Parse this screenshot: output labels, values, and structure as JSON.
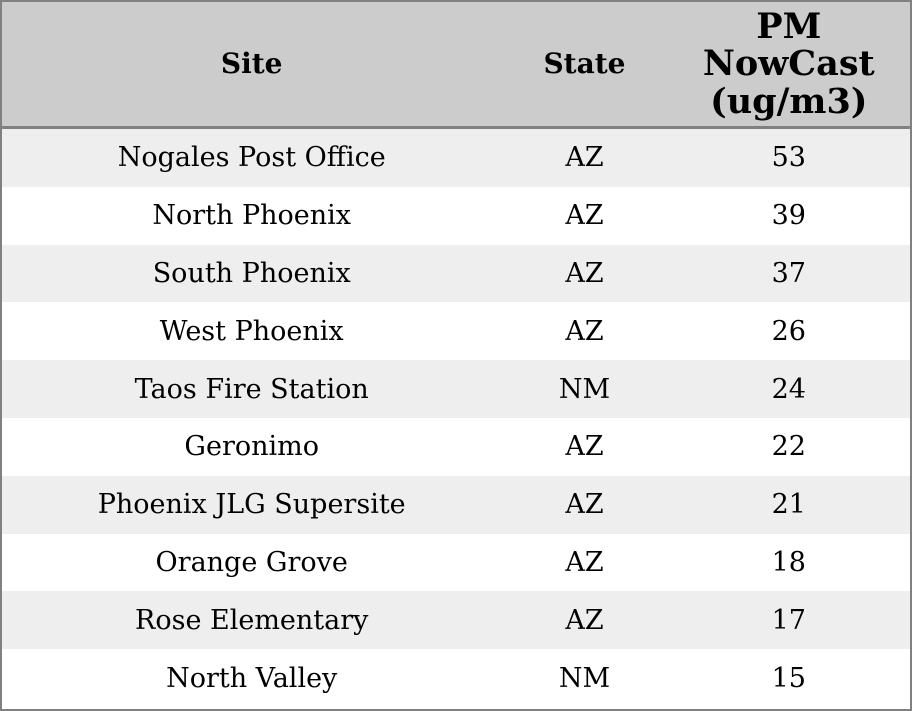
{
  "colors": {
    "header_bg": "#cccccc",
    "row_odd_bg": "#eeeeee",
    "row_even_bg": "#ffffff",
    "border": "#808080",
    "text": "#000000"
  },
  "table": {
    "headers": {
      "site": "Site",
      "state": "State",
      "pm": "PM\nNowCast\n(ug/m3)"
    }
  },
  "chart_data": {
    "type": "table",
    "title": "",
    "columns": [
      "Site",
      "State",
      "PM NowCast (ug/m3)"
    ],
    "rows": [
      {
        "site": "Nogales Post Office",
        "state": "AZ",
        "pm": 53
      },
      {
        "site": "North Phoenix",
        "state": "AZ",
        "pm": 39
      },
      {
        "site": "South Phoenix",
        "state": "AZ",
        "pm": 37
      },
      {
        "site": "West Phoenix",
        "state": "AZ",
        "pm": 26
      },
      {
        "site": "Taos Fire Station",
        "state": "NM",
        "pm": 24
      },
      {
        "site": "Geronimo",
        "state": "AZ",
        "pm": 22
      },
      {
        "site": "Phoenix JLG Supersite",
        "state": "AZ",
        "pm": 21
      },
      {
        "site": "Orange Grove",
        "state": "AZ",
        "pm": 18
      },
      {
        "site": "Rose Elementary",
        "state": "AZ",
        "pm": 17
      },
      {
        "site": "North Valley",
        "state": "NM",
        "pm": 15
      }
    ],
    "layout": {
      "striped_rows": true,
      "grid": "outer-border-and-header-rule",
      "text_align": "center"
    }
  }
}
